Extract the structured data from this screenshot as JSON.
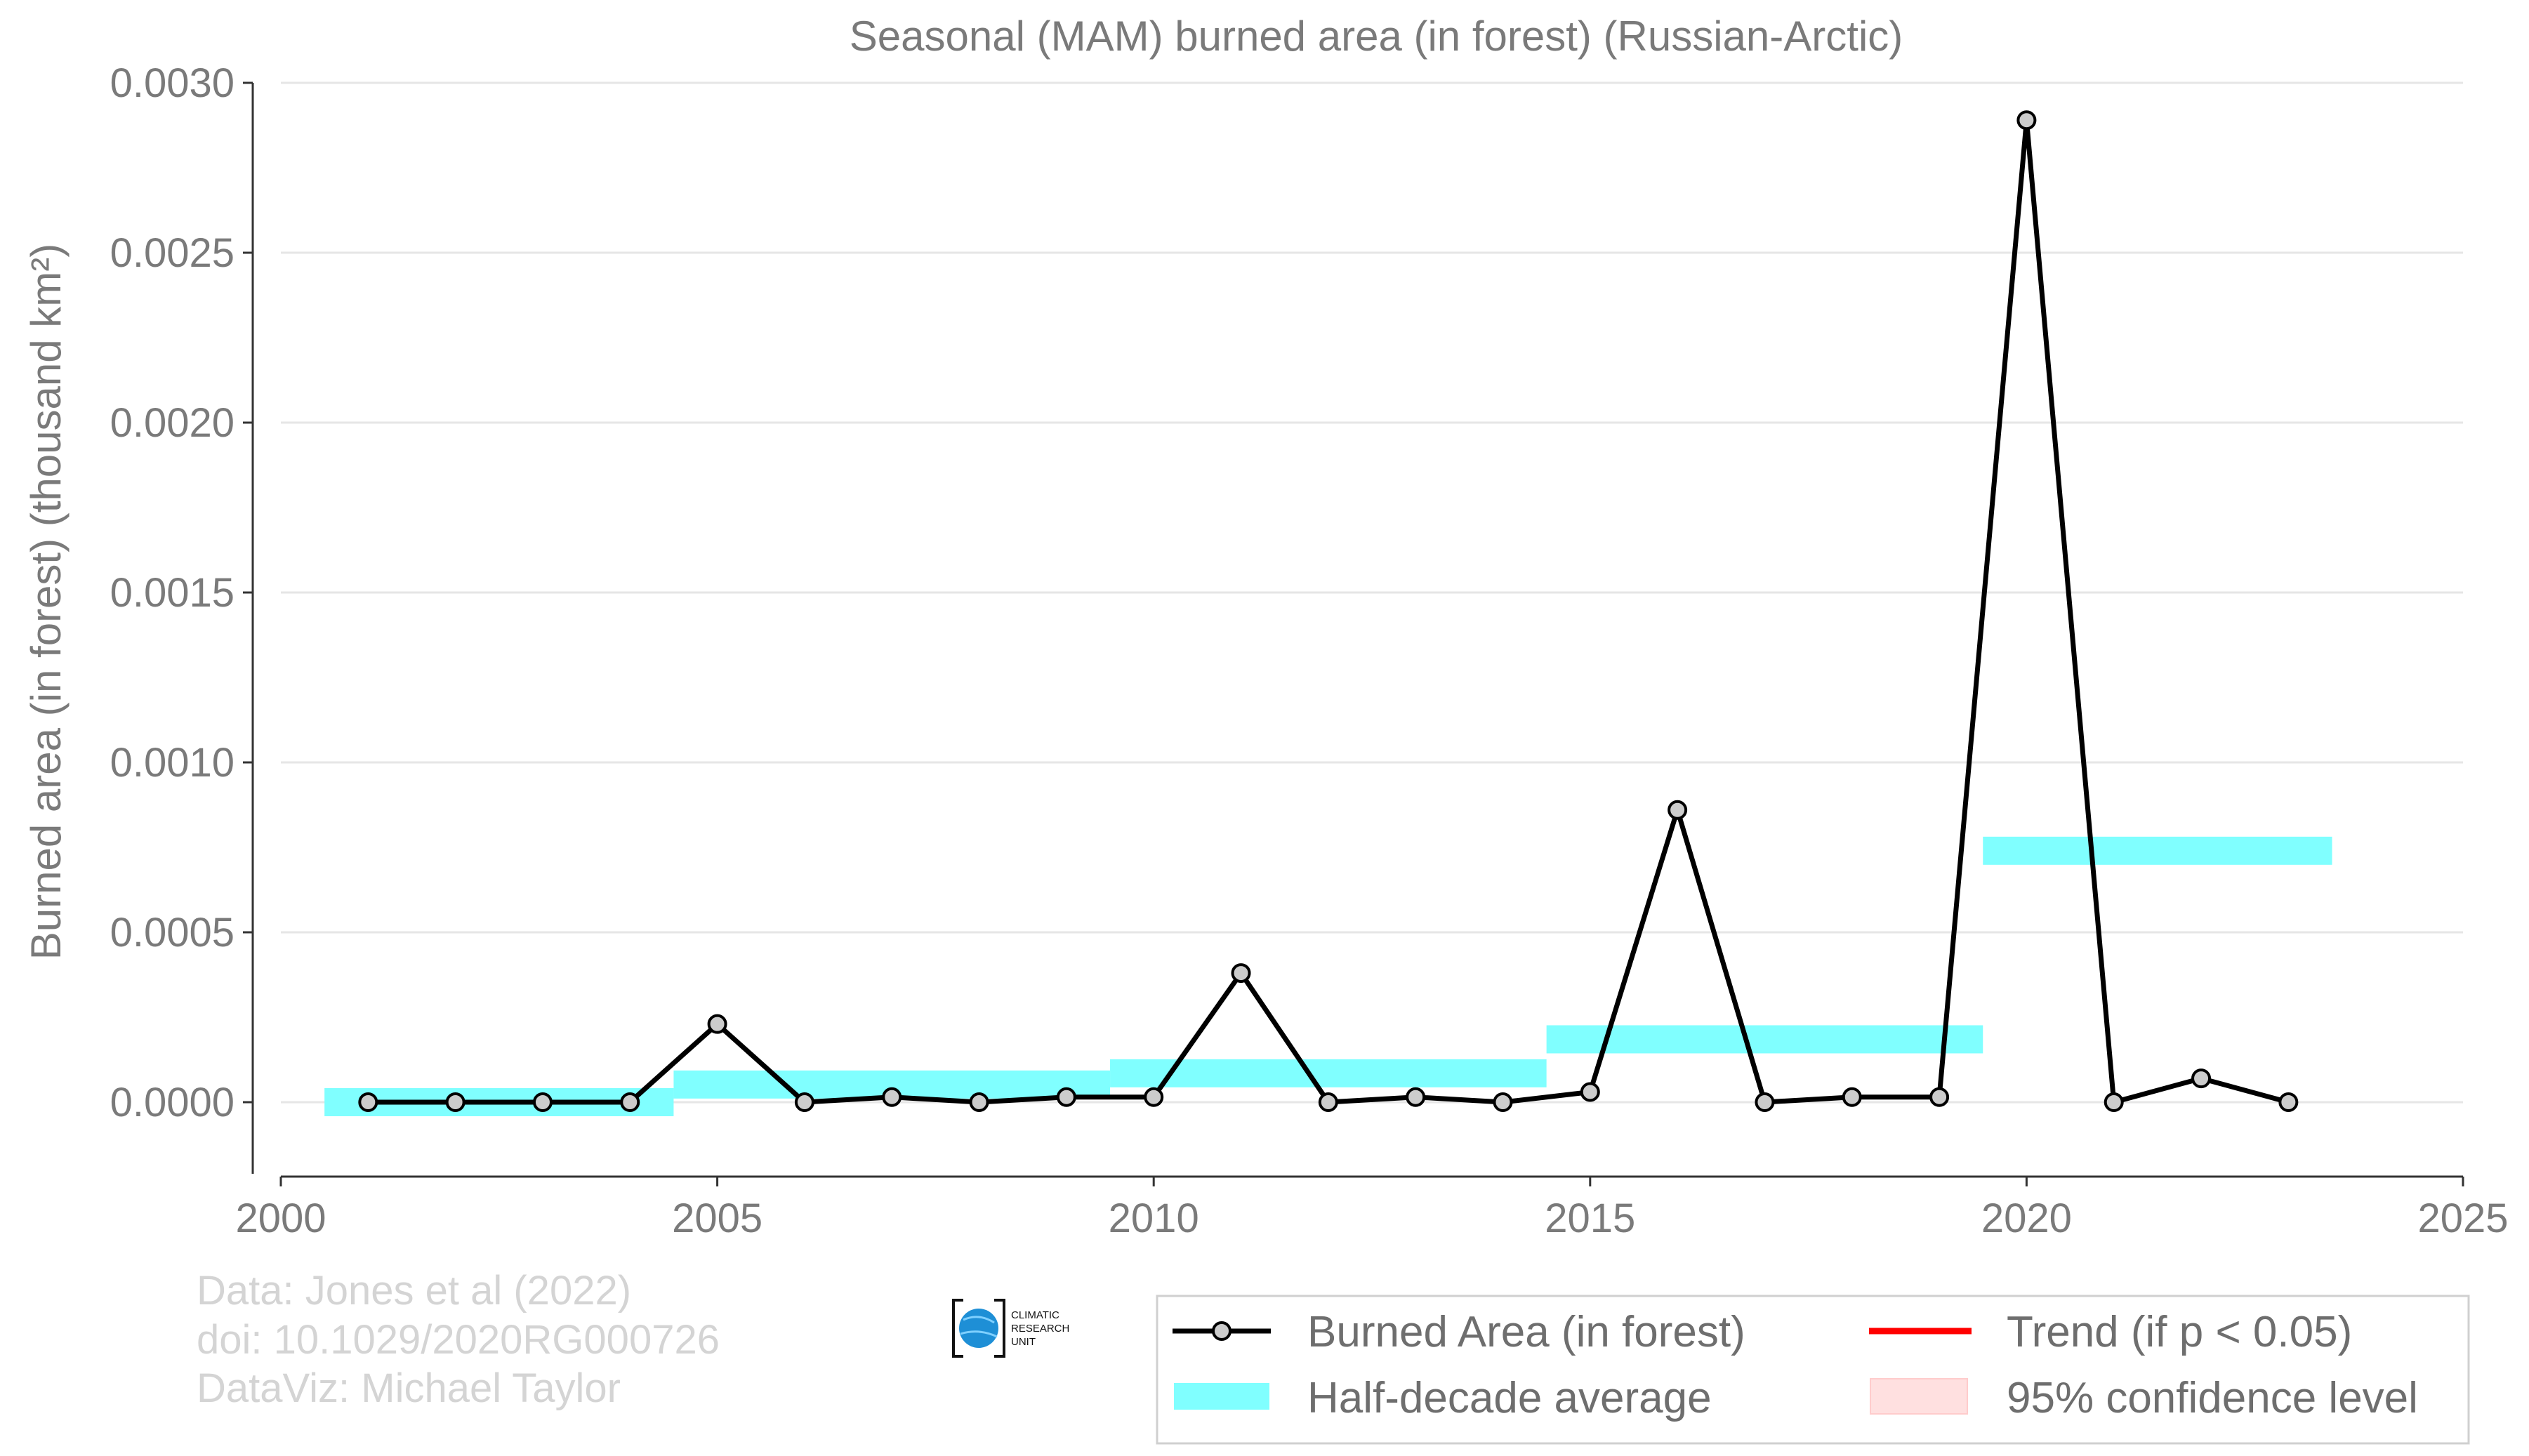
{
  "chart_data": {
    "type": "line",
    "title": "Seasonal (MAM) burned area (in forest) (Russian-Arctic)",
    "ylabel": "Burned area (in forest) (thousand km²)",
    "xlabel": "",
    "xlim": [
      2000,
      2025
    ],
    "ylim": [
      -0.00023,
      0.003
    ],
    "xticks": [
      "2000",
      "2005",
      "2010",
      "2015",
      "2020",
      "2025"
    ],
    "yticks": [
      "0.0000",
      "0.0005",
      "0.0010",
      "0.0015",
      "0.0020",
      "0.0025",
      "0.0030"
    ],
    "grid": "horizontal",
    "series": [
      {
        "name": "Burned Area (in forest)",
        "color": "#000000",
        "marker_fill": "#cccccc",
        "x": [
          2001,
          2002,
          2003,
          2004,
          2005,
          2006,
          2007,
          2008,
          2009,
          2010,
          2011,
          2012,
          2013,
          2014,
          2015,
          2016,
          2017,
          2018,
          2019,
          2020,
          2021,
          2022,
          2023
        ],
        "y": [
          0.0,
          0.0,
          0.0,
          0.0,
          0.00023,
          0.0,
          1.5e-05,
          0.0,
          1.5e-05,
          1.5e-05,
          0.00038,
          0.0,
          1.5e-05,
          0.0,
          3e-05,
          0.00086,
          0.0,
          1.5e-05,
          1.5e-05,
          0.00289,
          0.0,
          7e-05,
          0.0
        ]
      },
      {
        "name": "Half-decade average",
        "color": "#80ffff",
        "segments": [
          {
            "x0": 2000.5,
            "x1": 2004.5,
            "y": 0.0
          },
          {
            "x0": 2004.5,
            "x1": 2009.5,
            "y": 5.2e-05
          },
          {
            "x0": 2009.5,
            "x1": 2014.5,
            "y": 8.5e-05
          },
          {
            "x0": 2014.5,
            "x1": 2019.5,
            "y": 0.000185
          },
          {
            "x0": 2019.5,
            "x1": 2023.5,
            "y": 0.00074
          }
        ]
      }
    ],
    "legend": {
      "placement": "bottom-right",
      "entries": [
        {
          "label": "Burned Area (in forest)",
          "color": "#000000"
        },
        {
          "label": "Half-decade average",
          "color": "#80ffff"
        },
        {
          "label": "Trend (if p < 0.05)",
          "color": "#ff0000"
        },
        {
          "label": "95% confidence level",
          "color": "#ffe0e0"
        }
      ]
    }
  },
  "credits": {
    "line1": "Data: Jones et al (2022)",
    "line2": "doi: 10.1029/2020RG000726",
    "line3": "DataViz: Michael Taylor"
  },
  "logo": {
    "line1": "CLIMATIC",
    "line2": "RESEARCH",
    "line3": "UNIT"
  }
}
